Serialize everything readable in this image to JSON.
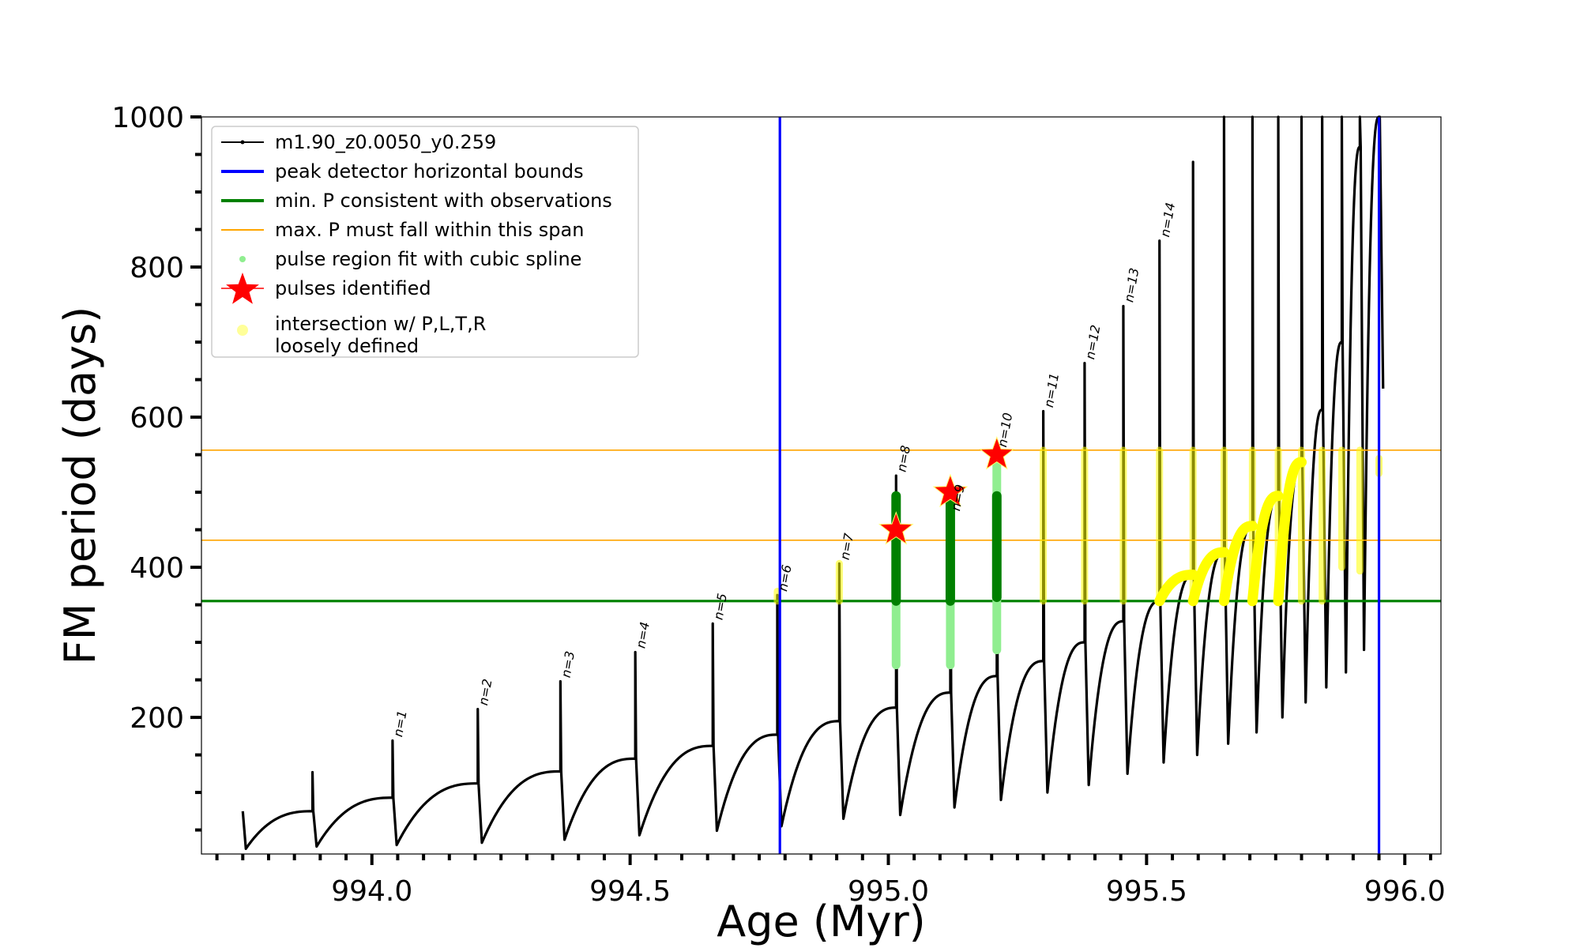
{
  "chart_data": {
    "type": "line",
    "title": "",
    "xlabel": "Age (Myr)",
    "ylabel": "FM period (days)",
    "xlim": [
      993.67,
      996.07
    ],
    "ylim": [
      18,
      1000
    ],
    "x_ticks": [
      994.0,
      994.5,
      995.0,
      995.5,
      996.0
    ],
    "x_tick_labels": [
      "994.0",
      "994.5",
      "995.0",
      "995.5",
      "996.0"
    ],
    "y_ticks": [
      200,
      400,
      600,
      800,
      1000
    ],
    "y_tick_labels": [
      "200",
      "400",
      "600",
      "800",
      "1000"
    ],
    "legend": {
      "position": "top-left",
      "entries": [
        {
          "label": "m1.90_z0.0050_y0.259",
          "color": "#000000",
          "style": "line-dot"
        },
        {
          "label": "peak detector horizontal bounds",
          "color": "#0000ff",
          "style": "line"
        },
        {
          "label": "min. P consistent with observations",
          "color": "#008000",
          "style": "line"
        },
        {
          "label": "max. P must fall within this span",
          "color": "#ffa500",
          "style": "thin-line"
        },
        {
          "label": "pulse region fit with cubic spline",
          "color": "#90ee90",
          "style": "dot"
        },
        {
          "label": "pulses identified",
          "color": "#ff0000",
          "style": "star"
        },
        {
          "label": "intersection w/ P,L,T,R",
          "label2": "loosely defined",
          "color": "#ffff99",
          "style": "circle"
        }
      ]
    },
    "colors": {
      "track": "#000000",
      "bounds": "#0000ff",
      "minP": "#008000",
      "span": "#ffa500",
      "spline": "#90ee90",
      "fit": "#008000",
      "star": "#ff0000",
      "intersect": "#ffff00"
    },
    "vertical_bounds": [
      994.79,
      995.95
    ],
    "min_period": 355,
    "max_period_span": [
      436,
      556
    ],
    "series": {
      "name": "m1.90_z0.0050_y0.259",
      "start": {
        "age": 993.75,
        "period": 28
      },
      "pulses": [
        {
          "age": 993.75,
          "pre": 0,
          "peak": 75,
          "min": 25
        },
        {
          "age": 993.885,
          "pre": 75,
          "peak": 127,
          "min": 28
        },
        {
          "age": 994.04,
          "pre": 93,
          "peak": 169,
          "min": 30,
          "label": "n=1"
        },
        {
          "age": 994.205,
          "pre": 112,
          "peak": 211,
          "min": 33,
          "label": "n=2"
        },
        {
          "age": 994.365,
          "pre": 128,
          "peak": 248,
          "min": 37,
          "label": "n=3"
        },
        {
          "age": 994.51,
          "pre": 145,
          "peak": 287,
          "min": 43,
          "label": "n=4"
        },
        {
          "age": 994.66,
          "pre": 162,
          "peak": 325,
          "min": 49,
          "label": "n=5"
        },
        {
          "age": 994.785,
          "pre": 177,
          "peak": 363,
          "min": 55,
          "label": "n=6"
        },
        {
          "age": 994.905,
          "pre": 195,
          "peak": 405,
          "min": 65,
          "label": "n=7"
        },
        {
          "age": 995.015,
          "pre": 213,
          "peak": 522,
          "min": 70,
          "label": "n=8"
        },
        {
          "age": 995.12,
          "pre": 233,
          "peak": 470,
          "min": 80,
          "label": "n=9"
        },
        {
          "age": 995.21,
          "pre": 255,
          "peak": 555,
          "min": 90,
          "label": "n=10"
        },
        {
          "age": 995.3,
          "pre": 275,
          "peak": 608,
          "min": 100,
          "label": "n=11"
        },
        {
          "age": 995.38,
          "pre": 300,
          "peak": 672,
          "min": 110,
          "label": "n=12"
        },
        {
          "age": 995.455,
          "pre": 328,
          "peak": 748,
          "min": 125,
          "label": "n=13"
        },
        {
          "age": 995.525,
          "pre": 355,
          "peak": 835,
          "min": 140,
          "label": "n=14"
        },
        {
          "age": 995.59,
          "pre": 390,
          "peak": 940,
          "min": 150
        },
        {
          "age": 995.65,
          "pre": 420,
          "peak": 1000,
          "min": 165
        },
        {
          "age": 995.705,
          "pre": 455,
          "peak": 1000,
          "min": 180
        },
        {
          "age": 995.755,
          "pre": 495,
          "peak": 1000,
          "min": 200
        },
        {
          "age": 995.8,
          "pre": 540,
          "peak": 1000,
          "min": 220
        },
        {
          "age": 995.84,
          "pre": 610,
          "peak": 1000,
          "min": 240
        },
        {
          "age": 995.878,
          "pre": 700,
          "peak": 1000,
          "min": 260
        },
        {
          "age": 995.913,
          "pre": 960,
          "peak": 1000,
          "min": 290
        },
        {
          "age": 995.95,
          "pre": 1000,
          "peak": 1000,
          "min": 638
        }
      ]
    },
    "identified_pulses": [
      {
        "label": "n=8",
        "age": 995.015,
        "period": 450,
        "fit_range": [
          355,
          495
        ],
        "spline_range": [
          270,
          495
        ]
      },
      {
        "label": "n=9",
        "age": 995.12,
        "period": 500,
        "fit_range": [
          355,
          500
        ],
        "spline_range": [
          270,
          500
        ]
      },
      {
        "label": "n=10",
        "age": 995.21,
        "period": 550,
        "fit_range": [
          360,
          495
        ],
        "spline_range": [
          290,
          555
        ]
      }
    ],
    "loose_intersections": [
      {
        "age": 994.785,
        "range": [
          355,
          368
        ]
      },
      {
        "age": 994.905,
        "range": [
          355,
          405
        ]
      },
      {
        "age": 995.3,
        "range": [
          355,
          556
        ]
      },
      {
        "age": 995.38,
        "range": [
          355,
          556
        ]
      },
      {
        "age": 995.455,
        "range": [
          355,
          556
        ]
      },
      {
        "age": 995.525,
        "range": [
          355,
          556
        ]
      },
      {
        "age": 995.59,
        "range": [
          355,
          556
        ]
      },
      {
        "age": 995.65,
        "range": [
          355,
          556
        ]
      },
      {
        "age": 995.705,
        "range": [
          355,
          556
        ]
      },
      {
        "age": 995.755,
        "range": [
          355,
          556
        ]
      },
      {
        "age": 995.8,
        "range": [
          355,
          556
        ]
      },
      {
        "age": 995.84,
        "range": [
          355,
          556
        ]
      },
      {
        "age": 995.878,
        "range": [
          400,
          556
        ]
      },
      {
        "age": 995.913,
        "range": [
          395,
          556
        ]
      },
      {
        "age": 995.95,
        "range": [
          525,
          545
        ]
      }
    ],
    "loose_recovery_curves": [
      {
        "from_age": 995.525,
        "to_age": 995.59,
        "from_p": 355,
        "to_p": 390
      },
      {
        "from_age": 995.59,
        "to_age": 995.65,
        "from_p": 355,
        "to_p": 420
      },
      {
        "from_age": 995.65,
        "to_age": 995.705,
        "from_p": 355,
        "to_p": 455
      },
      {
        "from_age": 995.705,
        "to_age": 995.755,
        "from_p": 355,
        "to_p": 495
      },
      {
        "from_age": 995.755,
        "to_age": 995.8,
        "from_p": 355,
        "to_p": 540
      }
    ]
  }
}
